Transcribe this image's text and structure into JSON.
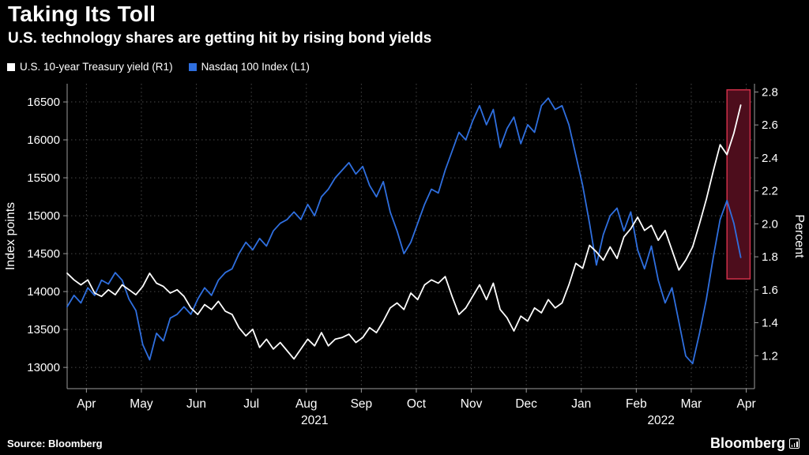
{
  "header": {
    "title": "Taking Its Toll",
    "subtitle": "U.S. technology shares are getting hit by rising bond yields"
  },
  "legend": [
    {
      "label": "U.S. 10-year Treasury yield (R1)",
      "color": "#ffffff"
    },
    {
      "label": "Nasdaq 100 Index (L1)",
      "color": "#2f6fdf"
    }
  ],
  "footer": {
    "source": "Source: Bloomberg",
    "brand": "Bloomberg"
  },
  "colors": {
    "background": "#000000",
    "grid": "#474747",
    "axis": "#9b9b9b",
    "text": "#ffffff",
    "highlight_fill": "#4d0d1c",
    "highlight_border": "#cf3049"
  },
  "chart_data": {
    "type": "line",
    "title": "Taking Its Toll",
    "grid": true,
    "legend_position": "top-left",
    "x_start": 0,
    "x_step": 0.125,
    "x_axis": {
      "range": [
        0,
        12.5
      ],
      "tick_offset": 0.35,
      "tick_labels": [
        "Apr",
        "May",
        "Jun",
        "Jul",
        "Aug",
        "Sep",
        "Oct",
        "Nov",
        "Dec",
        "Jan",
        "Feb",
        "Mar",
        "Apr"
      ],
      "year_labels": [
        {
          "label": "2021",
          "x": 4.5
        },
        {
          "label": "2022",
          "x": 10.8
        }
      ]
    },
    "left_axis": {
      "label": "Index points",
      "range": [
        12720,
        16740
      ],
      "ticks": [
        13000,
        13500,
        14000,
        14500,
        15000,
        15500,
        16000,
        16500
      ],
      "decimals": 0
    },
    "right_axis": {
      "label": "Percent",
      "range": [
        1.0,
        2.85
      ],
      "ticks": [
        1.2,
        1.4,
        1.6,
        1.8,
        2.0,
        2.2,
        2.4,
        2.6,
        2.8
      ],
      "decimals": 1
    },
    "highlight": {
      "x_start": 12.0,
      "x_end": 12.42,
      "y_top_frac": 0.02,
      "y_bottom_frac": 0.64
    },
    "series": [
      {
        "name": "Nasdaq 100 Index (L1)",
        "axis": "left",
        "color": "#2f6fdf",
        "width": 1.8,
        "values": [
          13800,
          13950,
          13850,
          14050,
          13950,
          14150,
          14100,
          14250,
          14150,
          13900,
          13750,
          13300,
          13100,
          13450,
          13350,
          13650,
          13700,
          13800,
          13700,
          13900,
          14050,
          13950,
          14150,
          14250,
          14300,
          14500,
          14650,
          14550,
          14700,
          14600,
          14800,
          14900,
          14950,
          15050,
          14950,
          15150,
          15000,
          15250,
          15350,
          15500,
          15600,
          15700,
          15550,
          15650,
          15400,
          15250,
          15450,
          15050,
          14800,
          14500,
          14650,
          14900,
          15150,
          15350,
          15300,
          15600,
          15850,
          16100,
          16000,
          16250,
          16450,
          16200,
          16400,
          15900,
          16150,
          16300,
          15950,
          16200,
          16100,
          16450,
          16550,
          16400,
          16450,
          16200,
          15800,
          15400,
          14900,
          14350,
          14750,
          15000,
          15100,
          14800,
          15050,
          14550,
          14300,
          14600,
          14150,
          13850,
          14050,
          13600,
          13150,
          13050,
          13450,
          13900,
          14450,
          14950,
          15200,
          14900,
          14450
        ]
      },
      {
        "name": "U.S. 10-year Treasury yield (R1)",
        "axis": "right",
        "color": "#ffffff",
        "width": 1.8,
        "values": [
          1.7,
          1.66,
          1.63,
          1.66,
          1.58,
          1.56,
          1.6,
          1.57,
          1.63,
          1.6,
          1.57,
          1.62,
          1.7,
          1.64,
          1.62,
          1.58,
          1.6,
          1.56,
          1.49,
          1.45,
          1.51,
          1.48,
          1.53,
          1.47,
          1.45,
          1.37,
          1.32,
          1.36,
          1.25,
          1.3,
          1.24,
          1.28,
          1.23,
          1.18,
          1.24,
          1.3,
          1.26,
          1.34,
          1.26,
          1.3,
          1.31,
          1.33,
          1.28,
          1.31,
          1.37,
          1.34,
          1.41,
          1.49,
          1.52,
          1.48,
          1.58,
          1.54,
          1.63,
          1.66,
          1.64,
          1.68,
          1.56,
          1.45,
          1.49,
          1.56,
          1.63,
          1.54,
          1.64,
          1.48,
          1.43,
          1.35,
          1.44,
          1.41,
          1.49,
          1.46,
          1.54,
          1.49,
          1.52,
          1.63,
          1.76,
          1.73,
          1.87,
          1.83,
          1.78,
          1.86,
          1.79,
          1.92,
          1.97,
          2.04,
          1.96,
          1.99,
          1.9,
          1.96,
          1.84,
          1.72,
          1.78,
          1.86,
          2.0,
          2.15,
          2.32,
          2.48,
          2.42,
          2.55,
          2.72
        ]
      }
    ]
  }
}
